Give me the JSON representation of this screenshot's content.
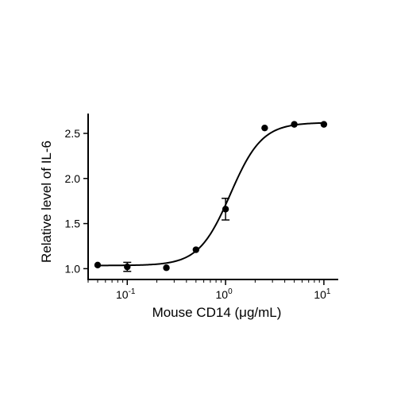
{
  "chart_data": {
    "type": "scatter",
    "xscale": "log",
    "xlabel": "Mouse CD14 (μg/mL)",
    "ylabel": "Relative level of IL-6",
    "xlim": [
      0.04,
      14
    ],
    "ylim": [
      0.88,
      2.72
    ],
    "x_ticks": [
      {
        "value": 0.1,
        "base": "10",
        "exp": "-1"
      },
      {
        "value": 1,
        "base": "10",
        "exp": "0"
      },
      {
        "value": 10,
        "base": "10",
        "exp": "1"
      }
    ],
    "y_ticks": [
      {
        "value": 1.0,
        "label": "1.0"
      },
      {
        "value": 1.5,
        "label": "1.5"
      },
      {
        "value": 2.0,
        "label": "2.0"
      },
      {
        "value": 2.5,
        "label": "2.5"
      }
    ],
    "points": [
      {
        "x": 0.05,
        "y": 1.04,
        "err": 0
      },
      {
        "x": 0.1,
        "y": 1.02,
        "err": 0.05
      },
      {
        "x": 0.25,
        "y": 1.01,
        "err": 0
      },
      {
        "x": 0.5,
        "y": 1.21,
        "err": 0
      },
      {
        "x": 1.0,
        "y": 1.66,
        "err": 0.12
      },
      {
        "x": 2.5,
        "y": 2.56,
        "err": 0
      },
      {
        "x": 5.0,
        "y": 2.6,
        "err": 0
      },
      {
        "x": 10.0,
        "y": 2.6,
        "err": 0
      }
    ],
    "fit": {
      "bottom": 1.035,
      "top": 2.62,
      "ec50": 1.12,
      "hill": 2.7
    },
    "grid": false,
    "legend": "none"
  }
}
